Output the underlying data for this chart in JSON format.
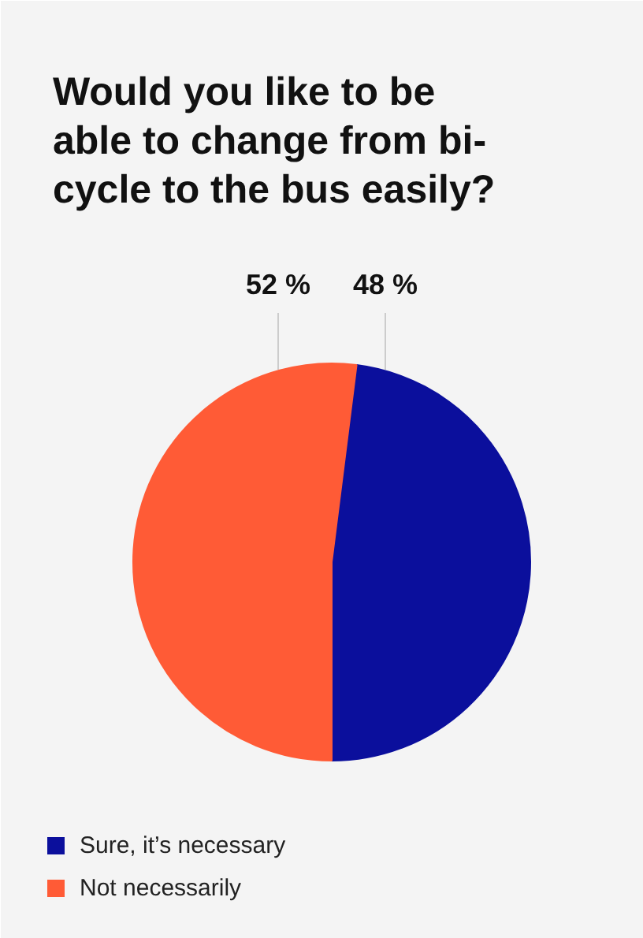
{
  "chart_data": {
    "type": "pie",
    "title": "Would you like to be\nable to change from bi-\ncycle to the bus easily?",
    "categories": [
      "Sure, it’s necessary",
      "Not necessarily"
    ],
    "values": [
      48,
      52
    ],
    "colors": [
      "#0b0f9c",
      "#ff5b36"
    ],
    "value_labels": [
      "48 %",
      "52 %"
    ],
    "legend": "bottom"
  }
}
